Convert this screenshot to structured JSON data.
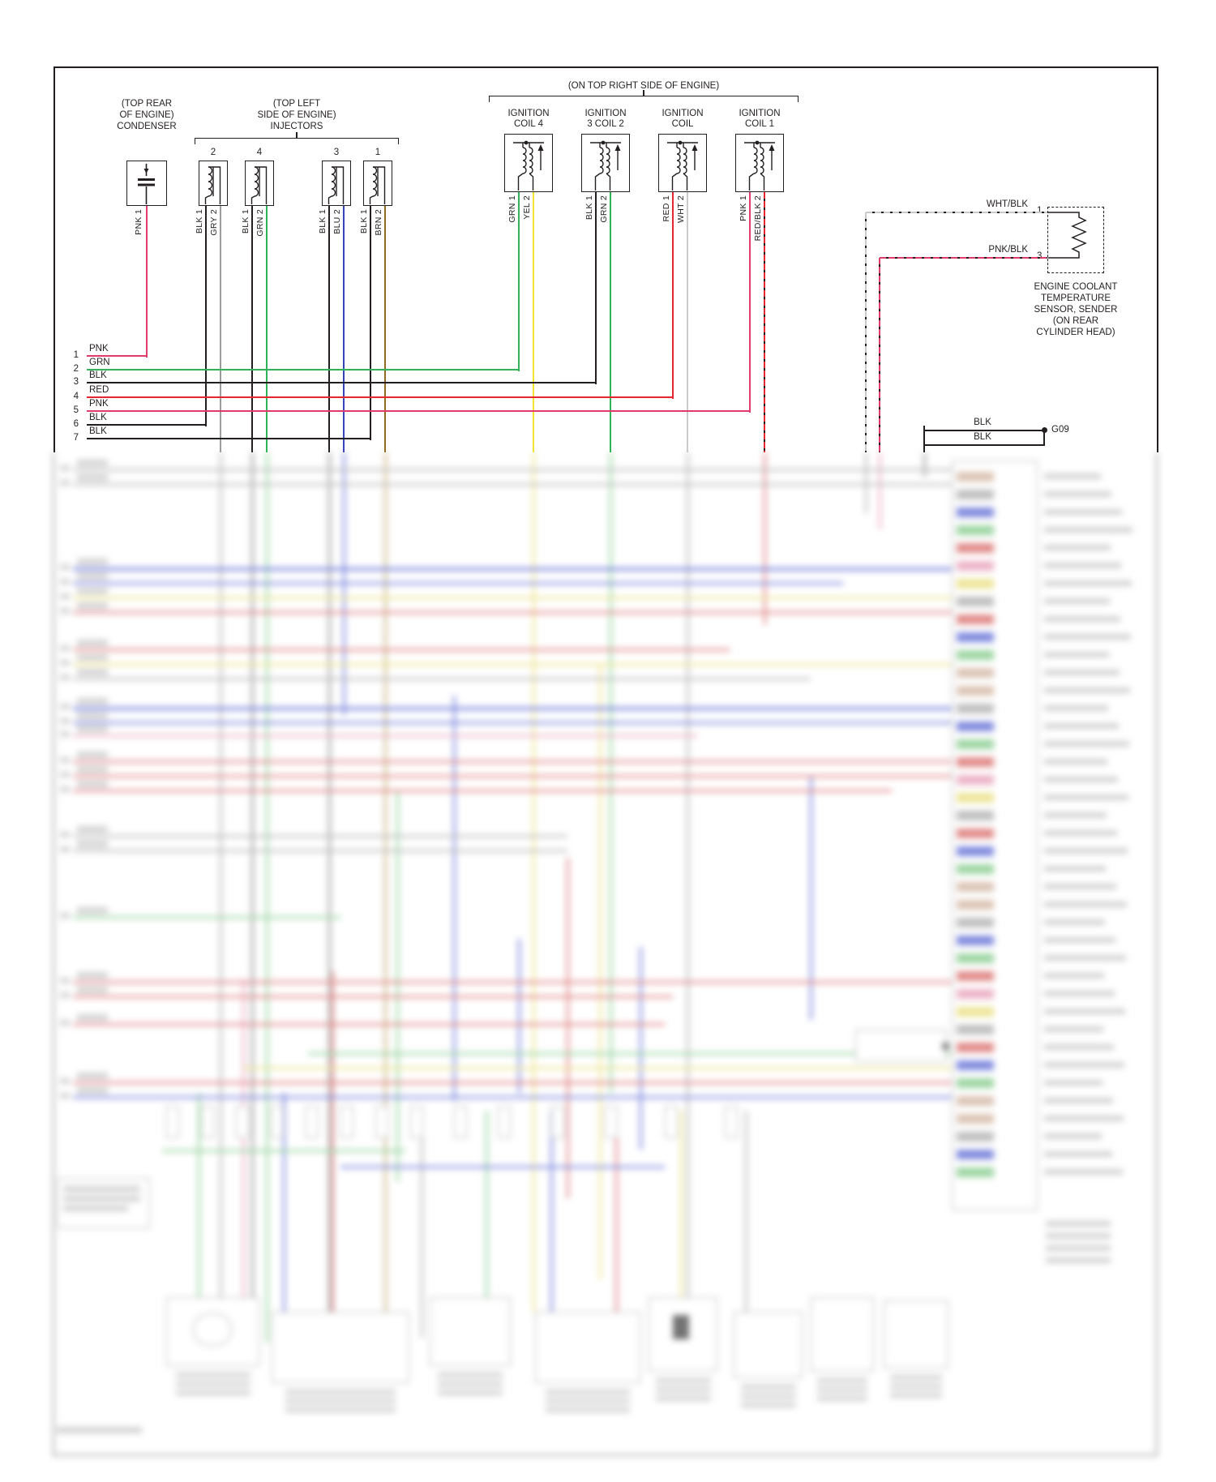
{
  "colors": {
    "ink": "#231f20",
    "pnk": "#e23a6b",
    "grn": "#2fb457",
    "red": "#e8262d",
    "blk": "#231f20",
    "gry": "#9a9c9e",
    "blu": "#3543bd",
    "brn": "#8f6b1f",
    "yel": "#f2e431",
    "wht": "#c8cacc"
  },
  "condenser": {
    "location_line1": "(TOP REAR",
    "location_line2": "OF ENGINE)",
    "name": "CONDENSER",
    "pin_label": "PNK 1"
  },
  "injectors": {
    "header_line1": "(TOP LEFT",
    "header_line2": "SIDE OF ENGINE)",
    "header_line3": "INJECTORS",
    "items": [
      {
        "num": "2",
        "pin1": "BLK 1",
        "pin2": "GRY 2"
      },
      {
        "num": "4",
        "pin1": "BLK 1",
        "pin2": "GRN 2"
      },
      {
        "num": "3",
        "pin1": "BLK 1",
        "pin2": "BLU 2"
      },
      {
        "num": "1",
        "pin1": "BLK 1",
        "pin2": "BRN 2"
      }
    ]
  },
  "ignition": {
    "header": "(ON TOP RIGHT SIDE OF ENGINE)",
    "items": [
      {
        "name_line1": "IGNITION",
        "name_line2": "COIL 4",
        "pin1": "GRN 1",
        "pin2": "YEL 2"
      },
      {
        "name_line1": "IGNITION",
        "name_line2": "3 COIL 2",
        "pin1": "BLK 1",
        "pin2": "GRN 2"
      },
      {
        "name_line1": "IGNITION",
        "name_line2": "COIL",
        "pin1": "RED 1",
        "pin2": "WHT 2"
      },
      {
        "name_line1": "IGNITION",
        "name_line2": "COIL 1",
        "pin1": "PNK 1",
        "pin2": "RED/BLK 2"
      }
    ]
  },
  "coolant_sensor": {
    "wire1_label": "WHT/BLK",
    "wire1_pin": "1",
    "wire2_label": "PNK/BLK",
    "wire2_pin": "3",
    "name_line1": "ENGINE COOLANT",
    "name_line2": "TEMPERATURE",
    "name_line3": "SENSOR, SENDER",
    "name_line4": "(ON REAR",
    "name_line5": "CYLINDER HEAD)"
  },
  "left_rows": [
    {
      "num": "1",
      "label": "PNK"
    },
    {
      "num": "2",
      "label": "GRN"
    },
    {
      "num": "3",
      "label": "BLK"
    },
    {
      "num": "4",
      "label": "RED"
    },
    {
      "num": "5",
      "label": "PNK"
    },
    {
      "num": "6",
      "label": "BLK"
    },
    {
      "num": "7",
      "label": "BLK"
    }
  ],
  "ground": {
    "wire1_label": "BLK",
    "wire2_label": "BLK",
    "id": "G09"
  }
}
